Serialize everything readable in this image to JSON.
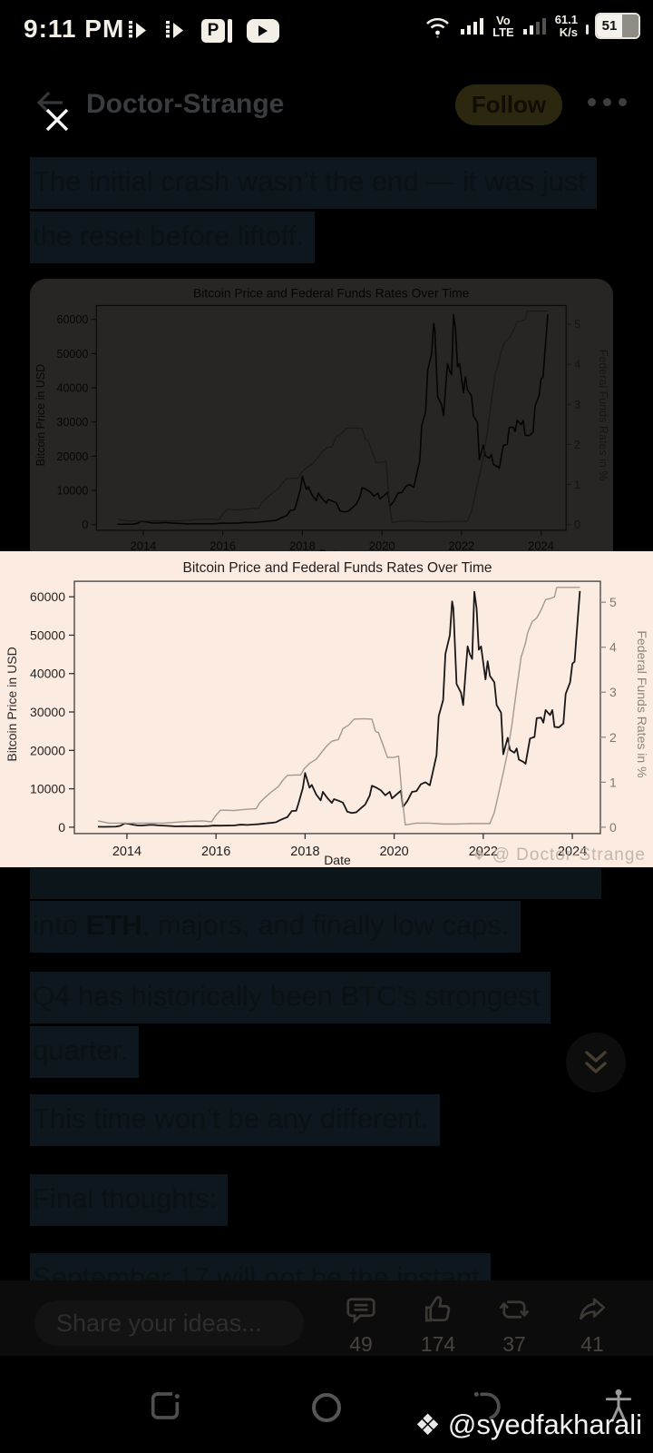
{
  "status_bar": {
    "time": "9:11 PM",
    "volte_line1": "Vo",
    "volte_line2": "LTE",
    "net_speed_value": "61.1",
    "net_speed_unit": "K/s",
    "battery_percent": "51"
  },
  "header": {
    "title": "Doctor-Strange",
    "follow_label": "Follow"
  },
  "post": {
    "p1_line1": "The initial crash wasn’t the end — it was just",
    "p1_line2": "the reset before liftoff.",
    "p2_prefix": "into ",
    "p2_bold": "ETH",
    "p2_suffix": ", majors, and finally low caps.",
    "p3_line1": "Q4 has historically been BTC’s strongest",
    "p3_line2": "quarter.",
    "p4": "This time won’t be any different.",
    "p5": "Final thoughts:",
    "p6": "September 17 will not be the instant"
  },
  "lightbox": {
    "watermark_icon": "❖",
    "watermark": "@ Doctor-Strange"
  },
  "engagement": {
    "comments": "49",
    "likes": "174",
    "reposts": "37",
    "shares": "41"
  },
  "composer": {
    "placeholder": "Share your ideas..."
  },
  "footer_watermark": {
    "icon": "❖",
    "handle": "@syedfakharali"
  },
  "chart_data": {
    "type": "line",
    "title": "Bitcoin Price and Federal Funds Rates Over Time",
    "xlabel": "Date",
    "ylabel_left": "Bitcoin Price in USD",
    "ylabel_right": "Federal Funds Rates in %",
    "x_ticks": [
      2014,
      2016,
      2018,
      2020,
      2022,
      2024
    ],
    "y_left_ticks": [
      0,
      10000,
      20000,
      30000,
      40000,
      50000,
      60000
    ],
    "y_right_ticks": [
      0,
      1,
      2,
      3,
      4,
      5
    ],
    "x_range": [
      2012.82,
      2024.63
    ],
    "y_left_range": [
      0,
      64000
    ],
    "y_right_range": [
      0,
      5.47
    ],
    "grid": false,
    "legend": "none",
    "series": [
      {
        "name": "Bitcoin Price",
        "axis": "left",
        "color": "#181818",
        "points": [
          [
            2013.35,
            120
          ],
          [
            2013.5,
            105
          ],
          [
            2013.6,
            120
          ],
          [
            2013.75,
            140
          ],
          [
            2013.85,
            350
          ],
          [
            2013.95,
            1000
          ],
          [
            2014.05,
            850
          ],
          [
            2014.15,
            620
          ],
          [
            2014.25,
            460
          ],
          [
            2014.35,
            450
          ],
          [
            2014.5,
            600
          ],
          [
            2014.6,
            590
          ],
          [
            2014.7,
            480
          ],
          [
            2014.85,
            380
          ],
          [
            2014.95,
            330
          ],
          [
            2015.1,
            220
          ],
          [
            2015.25,
            250
          ],
          [
            2015.4,
            235
          ],
          [
            2015.55,
            265
          ],
          [
            2015.7,
            235
          ],
          [
            2015.85,
            310
          ],
          [
            2015.95,
            420
          ],
          [
            2016.1,
            400
          ],
          [
            2016.25,
            420
          ],
          [
            2016.4,
            450
          ],
          [
            2016.55,
            660
          ],
          [
            2016.7,
            600
          ],
          [
            2016.85,
            700
          ],
          [
            2016.95,
            790
          ],
          [
            2017.05,
            900
          ],
          [
            2017.15,
            1050
          ],
          [
            2017.25,
            1150
          ],
          [
            2017.35,
            1300
          ],
          [
            2017.45,
            1900
          ],
          [
            2017.55,
            2400
          ],
          [
            2017.6,
            2600
          ],
          [
            2017.7,
            4200
          ],
          [
            2017.8,
            4300
          ],
          [
            2017.85,
            6100
          ],
          [
            2017.95,
            10200
          ],
          [
            2018.0,
            14100
          ],
          [
            2018.1,
            10300
          ],
          [
            2018.15,
            11000
          ],
          [
            2018.25,
            8500
          ],
          [
            2018.35,
            7000
          ],
          [
            2018.4,
            9200
          ],
          [
            2018.5,
            7600
          ],
          [
            2018.6,
            6300
          ],
          [
            2018.65,
            7300
          ],
          [
            2018.75,
            6900
          ],
          [
            2018.85,
            6400
          ],
          [
            2018.95,
            4000
          ],
          [
            2019.05,
            3700
          ],
          [
            2019.15,
            3900
          ],
          [
            2019.25,
            4900
          ],
          [
            2019.35,
            5900
          ],
          [
            2019.45,
            8200
          ],
          [
            2019.5,
            10800
          ],
          [
            2019.6,
            10300
          ],
          [
            2019.7,
            9600
          ],
          [
            2019.8,
            8300
          ],
          [
            2019.9,
            9200
          ],
          [
            2019.95,
            7500
          ],
          [
            2020.05,
            8500
          ],
          [
            2020.15,
            9500
          ],
          [
            2020.2,
            5300
          ],
          [
            2020.3,
            6900
          ],
          [
            2020.4,
            9200
          ],
          [
            2020.5,
            9400
          ],
          [
            2020.6,
            11200
          ],
          [
            2020.7,
            11700
          ],
          [
            2020.8,
            10900
          ],
          [
            2020.85,
            13500
          ],
          [
            2020.95,
            18700
          ],
          [
            2021.0,
            28900
          ],
          [
            2021.1,
            33100
          ],
          [
            2021.15,
            45100
          ],
          [
            2021.25,
            50000
          ],
          [
            2021.3,
            58800
          ],
          [
            2021.33,
            57000
          ],
          [
            2021.4,
            37300
          ],
          [
            2021.5,
            35000
          ],
          [
            2021.55,
            31800
          ],
          [
            2021.6,
            39900
          ],
          [
            2021.65,
            47100
          ],
          [
            2021.7,
            45000
          ],
          [
            2021.75,
            43800
          ],
          [
            2021.8,
            61300
          ],
          [
            2021.85,
            57000
          ],
          [
            2021.9,
            46200
          ],
          [
            2021.95,
            47100
          ],
          [
            2022.05,
            38500
          ],
          [
            2022.1,
            43200
          ],
          [
            2022.15,
            39400
          ],
          [
            2022.25,
            37700
          ],
          [
            2022.3,
            31800
          ],
          [
            2022.4,
            29800
          ],
          [
            2022.45,
            19000
          ],
          [
            2022.55,
            23300
          ],
          [
            2022.6,
            20100
          ],
          [
            2022.7,
            19400
          ],
          [
            2022.75,
            20500
          ],
          [
            2022.8,
            17600
          ],
          [
            2022.9,
            17000
          ],
          [
            2022.95,
            16500
          ],
          [
            2023.05,
            23100
          ],
          [
            2023.15,
            23500
          ],
          [
            2023.2,
            28400
          ],
          [
            2023.3,
            28500
          ],
          [
            2023.35,
            27200
          ],
          [
            2023.4,
            30500
          ],
          [
            2023.5,
            29200
          ],
          [
            2023.55,
            30500
          ],
          [
            2023.6,
            26100
          ],
          [
            2023.7,
            26000
          ],
          [
            2023.8,
            27000
          ],
          [
            2023.85,
            34700
          ],
          [
            2023.95,
            37700
          ],
          [
            2024.0,
            42600
          ],
          [
            2024.05,
            43100
          ],
          [
            2024.1,
            51000
          ],
          [
            2024.17,
            61500
          ]
        ]
      },
      {
        "name": "Federal Funds Rate",
        "axis": "right",
        "color": "#a09a92",
        "points": [
          [
            2013.35,
            0.14
          ],
          [
            2013.6,
            0.09
          ],
          [
            2013.9,
            0.09
          ],
          [
            2014.2,
            0.09
          ],
          [
            2014.5,
            0.09
          ],
          [
            2014.8,
            0.09
          ],
          [
            2015.1,
            0.11
          ],
          [
            2015.4,
            0.13
          ],
          [
            2015.7,
            0.14
          ],
          [
            2015.9,
            0.12
          ],
          [
            2015.98,
            0.24
          ],
          [
            2016.1,
            0.38
          ],
          [
            2016.4,
            0.37
          ],
          [
            2016.7,
            0.4
          ],
          [
            2016.9,
            0.41
          ],
          [
            2016.98,
            0.54
          ],
          [
            2017.1,
            0.66
          ],
          [
            2017.25,
            0.79
          ],
          [
            2017.4,
            0.9
          ],
          [
            2017.5,
            1.04
          ],
          [
            2017.6,
            1.15
          ],
          [
            2017.75,
            1.16
          ],
          [
            2017.9,
            1.16
          ],
          [
            2017.98,
            1.3
          ],
          [
            2018.1,
            1.42
          ],
          [
            2018.25,
            1.51
          ],
          [
            2018.4,
            1.7
          ],
          [
            2018.5,
            1.82
          ],
          [
            2018.6,
            1.91
          ],
          [
            2018.75,
            1.95
          ],
          [
            2018.85,
            2.19
          ],
          [
            2018.98,
            2.27
          ],
          [
            2019.1,
            2.4
          ],
          [
            2019.3,
            2.41
          ],
          [
            2019.5,
            2.4
          ],
          [
            2019.58,
            2.13
          ],
          [
            2019.65,
            2.1
          ],
          [
            2019.75,
            1.83
          ],
          [
            2019.85,
            1.55
          ],
          [
            2020.0,
            1.55
          ],
          [
            2020.1,
            1.58
          ],
          [
            2020.18,
            0.65
          ],
          [
            2020.25,
            0.05
          ],
          [
            2020.5,
            0.09
          ],
          [
            2020.8,
            0.09
          ],
          [
            2021.1,
            0.07
          ],
          [
            2021.4,
            0.07
          ],
          [
            2021.7,
            0.08
          ],
          [
            2022.0,
            0.08
          ],
          [
            2022.15,
            0.08
          ],
          [
            2022.25,
            0.33
          ],
          [
            2022.35,
            0.77
          ],
          [
            2022.45,
            1.21
          ],
          [
            2022.55,
            1.68
          ],
          [
            2022.65,
            2.33
          ],
          [
            2022.75,
            3.08
          ],
          [
            2022.85,
            3.78
          ],
          [
            2022.95,
            4.1
          ],
          [
            2023.0,
            4.33
          ],
          [
            2023.1,
            4.57
          ],
          [
            2023.2,
            4.65
          ],
          [
            2023.3,
            4.83
          ],
          [
            2023.4,
            5.06
          ],
          [
            2023.5,
            5.08
          ],
          [
            2023.6,
            5.12
          ],
          [
            2023.65,
            5.33
          ],
          [
            2023.8,
            5.33
          ],
          [
            2024.0,
            5.33
          ],
          [
            2024.17,
            5.33
          ]
        ]
      }
    ],
    "watermark": "@ Doctor-Strange"
  }
}
